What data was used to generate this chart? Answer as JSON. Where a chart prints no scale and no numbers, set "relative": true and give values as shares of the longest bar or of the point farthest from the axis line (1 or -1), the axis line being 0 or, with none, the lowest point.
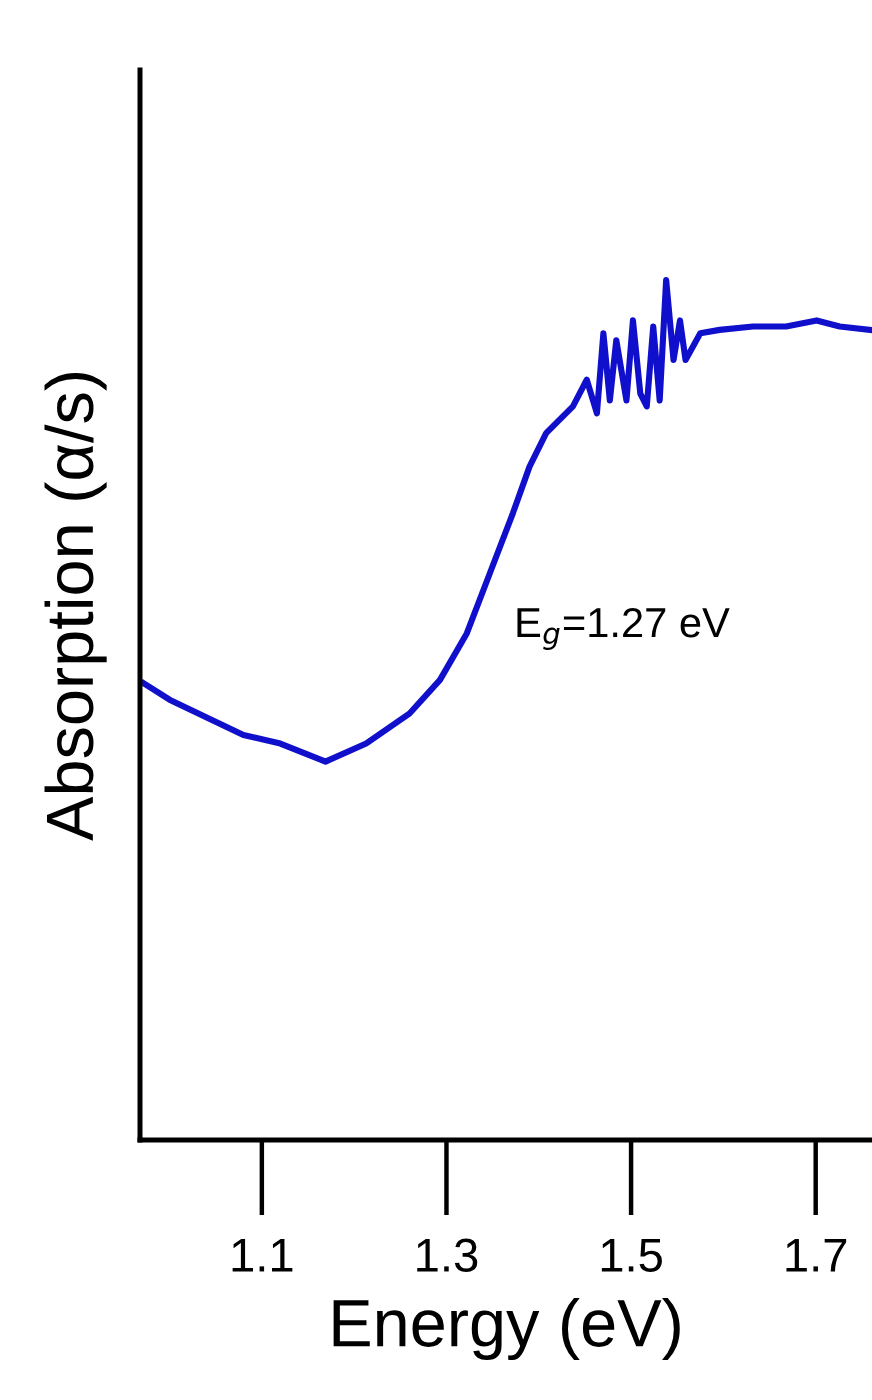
{
  "chart_data": {
    "type": "line",
    "relative": true,
    "xlabel": "Energy (eV)",
    "ylabel": "Absorption (α/s)",
    "annotations": [
      "E$_{g}$=1.27 eV"
    ],
    "xlim": [
      0.968,
      1.761
    ],
    "xticks": [
      1.1,
      1.3,
      1.5,
      1.7
    ],
    "grid": false,
    "legend": false,
    "marker": "none",
    "line_style": "solid",
    "series": [
      {
        "color": "#1010cc",
        "x": [
          0.972,
          1.0,
          1.08,
          1.12,
          1.169,
          1.213,
          1.26,
          1.293,
          1.322,
          1.347,
          1.372,
          1.39,
          1.408,
          1.437,
          1.452,
          1.463,
          1.47,
          1.477,
          1.484,
          1.495,
          1.502,
          1.51,
          1.517,
          1.524,
          1.531,
          1.538,
          1.546,
          1.553,
          1.559,
          1.575,
          1.596,
          1.632,
          1.668,
          1.701,
          1.726,
          1.759
        ],
        "values": [
          0.531,
          0.512,
          0.471,
          0.461,
          0.44,
          0.461,
          0.496,
          0.535,
          0.589,
          0.659,
          0.729,
          0.783,
          0.822,
          0.853,
          0.884,
          0.845,
          0.938,
          0.86,
          0.93,
          0.86,
          0.953,
          0.868,
          0.853,
          0.946,
          0.86,
          1.0,
          0.907,
          0.953,
          0.907,
          0.938,
          0.942,
          0.946,
          0.946,
          0.953,
          0.946,
          0.942
        ]
      }
    ]
  }
}
